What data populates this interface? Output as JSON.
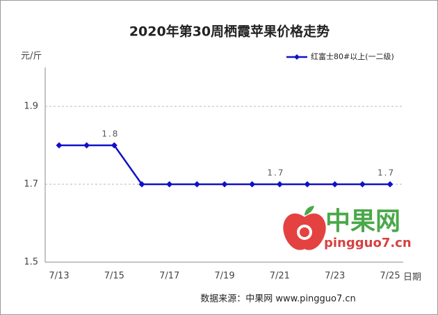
{
  "chart_data": {
    "type": "line",
    "title": "2020年第30周栖霞苹果价格走势",
    "y_label": "元/斤",
    "x_label": "日期",
    "source": "数据来源：中果网 www.pingguo7.cn",
    "watermark": {
      "name": "中果网",
      "site": "pingguo7.cn"
    },
    "categories": [
      "7/13",
      null,
      "7/15",
      null,
      "7/17",
      null,
      "7/19",
      null,
      "7/21",
      null,
      "7/23",
      null,
      "7/25"
    ],
    "series": [
      {
        "name": "红富士80#以上(一二级)",
        "color": "#1010c8",
        "values": [
          1.8,
          1.8,
          1.8,
          1.7,
          1.7,
          1.7,
          1.7,
          1.7,
          1.7,
          1.7,
          1.7,
          1.7,
          1.7
        ],
        "value_labels": [
          null,
          null,
          "1.8",
          null,
          null,
          null,
          null,
          null,
          "1.7",
          null,
          null,
          null,
          "1.7"
        ]
      }
    ],
    "ylim": [
      1.5,
      2.0
    ],
    "yticks": [
      1.5,
      1.7,
      1.9
    ],
    "grid": true,
    "legend": "top-right"
  }
}
